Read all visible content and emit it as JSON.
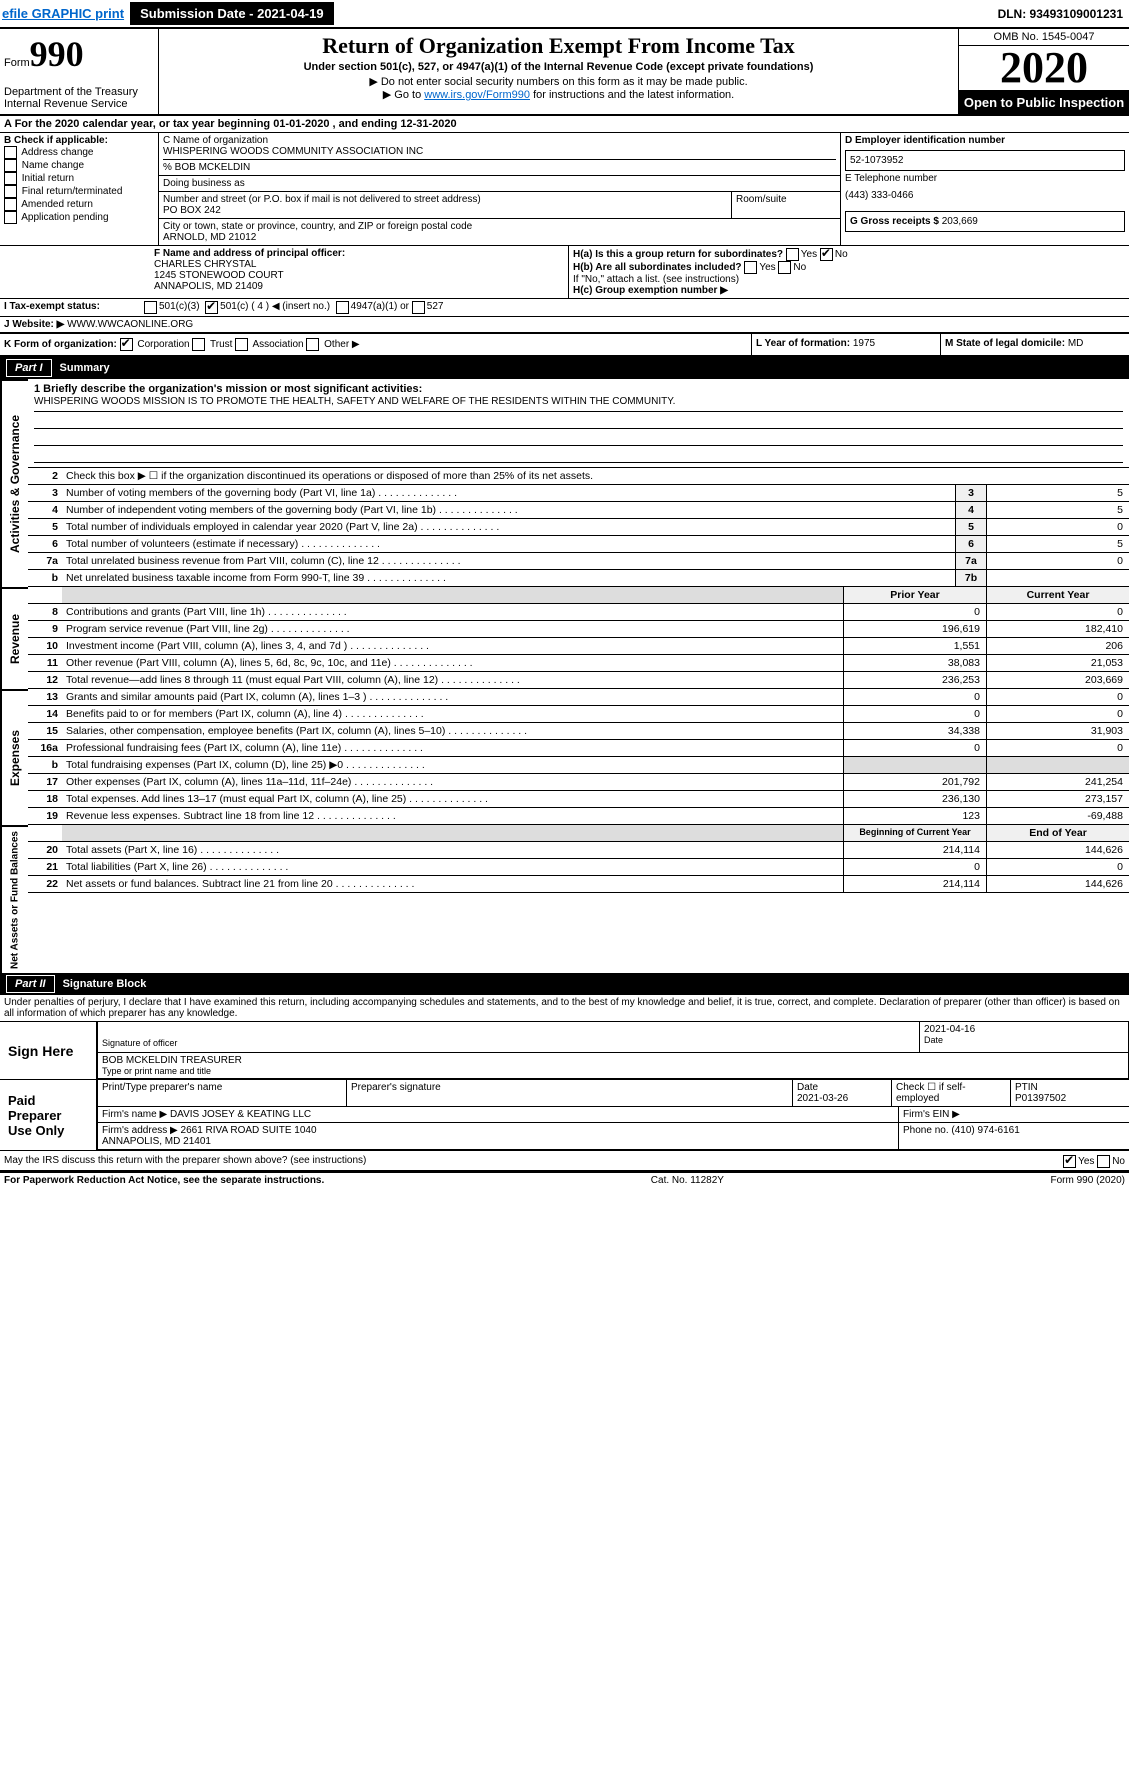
{
  "top": {
    "efile": "efile GRAPHIC print",
    "submission_label": "Submission Date - 2021-04-19",
    "dln": "DLN: 93493109001231"
  },
  "header": {
    "form_prefix": "Form",
    "form_number": "990",
    "dept": "Department of the Treasury\nInternal Revenue Service",
    "title": "Return of Organization Exempt From Income Tax",
    "subtitle": "Under section 501(c), 527, or 4947(a)(1) of the Internal Revenue Code (except private foundations)",
    "instr1": "▶ Do not enter social security numbers on this form as it may be made public.",
    "instr2_pre": "▶ Go to ",
    "instr2_link": "www.irs.gov/Form990",
    "instr2_post": " for instructions and the latest information.",
    "omb": "OMB No. 1545-0047",
    "year": "2020",
    "open": "Open to Public Inspection"
  },
  "row_a": "A For the 2020 calendar year, or tax year beginning 01-01-2020    , and ending 12-31-2020",
  "box_b": {
    "label": "B Check if applicable:",
    "opts": [
      "Address change",
      "Name change",
      "Initial return",
      "Final return/terminated",
      "Amended return",
      "Application pending"
    ]
  },
  "box_c": {
    "name_label": "C Name of organization",
    "name": "WHISPERING WOODS COMMUNITY ASSOCIATION INC",
    "care_of": "% BOB MCKELDIN",
    "dba_label": "Doing business as",
    "street_label": "Number and street (or P.O. box if mail is not delivered to street address)",
    "street": "PO BOX 242",
    "room_label": "Room/suite",
    "city_label": "City or town, state or province, country, and ZIP or foreign postal code",
    "city": "ARNOLD, MD  21012"
  },
  "box_d": {
    "label": "D Employer identification number",
    "value": "52-1073952"
  },
  "box_e": {
    "label": "E Telephone number",
    "value": "(443) 333-0466"
  },
  "box_g": {
    "label": "G Gross receipts $",
    "value": "203,669"
  },
  "box_f": {
    "label": "F  Name and address of principal officer:",
    "name": "CHARLES CHRYSTAL",
    "addr1": "1245 STONEWOOD COURT",
    "addr2": "ANNAPOLIS, MD  21409"
  },
  "box_h": {
    "ha": "H(a)  Is this a group return for subordinates?",
    "hb": "H(b)  Are all subordinates included?",
    "hb_note": "If \"No,\" attach a list. (see instructions)",
    "hc": "H(c)  Group exemption number ▶"
  },
  "row_i": {
    "label": "I  Tax-exempt status:",
    "opt1": "501(c)(3)",
    "opt2": "501(c) ( 4 ) ◀ (insert no.)",
    "opt3": "4947(a)(1) or",
    "opt4": "527"
  },
  "row_j": {
    "label": "J  Website: ▶",
    "value": "WWW.WWCAONLINE.ORG"
  },
  "row_k": {
    "label": "K Form of organization:",
    "opts": [
      "Corporation",
      "Trust",
      "Association",
      "Other ▶"
    ],
    "l_label": "L Year of formation:",
    "l_val": "1975",
    "m_label": "M State of legal domicile:",
    "m_val": "MD"
  },
  "part1": {
    "label": "Part I",
    "title": "Summary"
  },
  "mission": {
    "q": "1  Briefly describe the organization's mission or most significant activities:",
    "text": "WHISPERING WOODS MISSION IS TO PROMOTE THE HEALTH, SAFETY AND WELFARE OF THE RESIDENTS WITHIN THE COMMUNITY."
  },
  "gov_lines": [
    {
      "n": "2",
      "t": "Check this box ▶ ☐  if the organization discontinued its operations or disposed of more than 25% of its net assets."
    },
    {
      "n": "3",
      "t": "Number of voting members of the governing body (Part VI, line 1a)",
      "box": "3",
      "v": "5"
    },
    {
      "n": "4",
      "t": "Number of independent voting members of the governing body (Part VI, line 1b)",
      "box": "4",
      "v": "5"
    },
    {
      "n": "5",
      "t": "Total number of individuals employed in calendar year 2020 (Part V, line 2a)",
      "box": "5",
      "v": "0"
    },
    {
      "n": "6",
      "t": "Total number of volunteers (estimate if necessary)",
      "box": "6",
      "v": "5"
    },
    {
      "n": "7a",
      "t": "Total unrelated business revenue from Part VIII, column (C), line 12",
      "box": "7a",
      "v": "0"
    },
    {
      "n": "b",
      "t": "Net unrelated business taxable income from Form 990-T, line 39",
      "box": "7b",
      "v": ""
    }
  ],
  "two_col_header": {
    "prior": "Prior Year",
    "current": "Current Year"
  },
  "rev_lines": [
    {
      "n": "8",
      "t": "Contributions and grants (Part VIII, line 1h)",
      "p": "0",
      "c": "0"
    },
    {
      "n": "9",
      "t": "Program service revenue (Part VIII, line 2g)",
      "p": "196,619",
      "c": "182,410"
    },
    {
      "n": "10",
      "t": "Investment income (Part VIII, column (A), lines 3, 4, and 7d )",
      "p": "1,551",
      "c": "206"
    },
    {
      "n": "11",
      "t": "Other revenue (Part VIII, column (A), lines 5, 6d, 8c, 9c, 10c, and 11e)",
      "p": "38,083",
      "c": "21,053"
    },
    {
      "n": "12",
      "t": "Total revenue—add lines 8 through 11 (must equal Part VIII, column (A), line 12)",
      "p": "236,253",
      "c": "203,669"
    }
  ],
  "exp_lines": [
    {
      "n": "13",
      "t": "Grants and similar amounts paid (Part IX, column (A), lines 1–3 )",
      "p": "0",
      "c": "0"
    },
    {
      "n": "14",
      "t": "Benefits paid to or for members (Part IX, column (A), line 4)",
      "p": "0",
      "c": "0"
    },
    {
      "n": "15",
      "t": "Salaries, other compensation, employee benefits (Part IX, column (A), lines 5–10)",
      "p": "34,338",
      "c": "31,903"
    },
    {
      "n": "16a",
      "t": "Professional fundraising fees (Part IX, column (A), line 11e)",
      "p": "0",
      "c": "0"
    },
    {
      "n": "b",
      "t": "Total fundraising expenses (Part IX, column (D), line 25) ▶0",
      "p": "",
      "c": "",
      "gray": true
    },
    {
      "n": "17",
      "t": "Other expenses (Part IX, column (A), lines 11a–11d, 11f–24e)",
      "p": "201,792",
      "c": "241,254"
    },
    {
      "n": "18",
      "t": "Total expenses. Add lines 13–17 (must equal Part IX, column (A), line 25)",
      "p": "236,130",
      "c": "273,157"
    },
    {
      "n": "19",
      "t": "Revenue less expenses. Subtract line 18 from line 12",
      "p": "123",
      "c": "-69,488"
    }
  ],
  "bal_header": {
    "begin": "Beginning of Current Year",
    "end": "End of Year"
  },
  "bal_lines": [
    {
      "n": "20",
      "t": "Total assets (Part X, line 16)",
      "p": "214,114",
      "c": "144,626"
    },
    {
      "n": "21",
      "t": "Total liabilities (Part X, line 26)",
      "p": "0",
      "c": "0"
    },
    {
      "n": "22",
      "t": "Net assets or fund balances. Subtract line 21 from line 20",
      "p": "214,114",
      "c": "144,626"
    }
  ],
  "vtabs": {
    "gov": "Activities & Governance",
    "rev": "Revenue",
    "exp": "Expenses",
    "bal": "Net Assets or Fund Balances"
  },
  "part2": {
    "label": "Part II",
    "title": "Signature Block"
  },
  "perjury": "Under penalties of perjury, I declare that I have examined this return, including accompanying schedules and statements, and to the best of my knowledge and belief, it is true, correct, and complete. Declaration of preparer (other than officer) is based on all information of which preparer has any knowledge.",
  "sign": {
    "label": "Sign Here",
    "sig_label": "Signature of officer",
    "date": "2021-04-16",
    "date_label": "Date",
    "name": "BOB MCKELDIN  TREASURER",
    "name_label": "Type or print name and title"
  },
  "paid": {
    "label": "Paid Preparer Use Only",
    "h1": "Print/Type preparer's name",
    "h2": "Preparer's signature",
    "h3": "Date",
    "h4": "Check ☐ if self-employed",
    "h5": "PTIN",
    "date": "2021-03-26",
    "ptin": "P01397502",
    "firm_label": "Firm's name    ▶",
    "firm": "DAVIS JOSEY & KEATING LLC",
    "ein_label": "Firm's EIN ▶",
    "addr_label": "Firm's address ▶",
    "addr": "2661 RIVA ROAD SUITE 1040\nANNAPOLIS, MD  21401",
    "phone_label": "Phone no.",
    "phone": "(410) 974-6161"
  },
  "discuss": "May the IRS discuss this return with the preparer shown above? (see instructions)",
  "footer": {
    "left": "For Paperwork Reduction Act Notice, see the separate instructions.",
    "mid": "Cat. No. 11282Y",
    "right": "Form 990 (2020)"
  }
}
